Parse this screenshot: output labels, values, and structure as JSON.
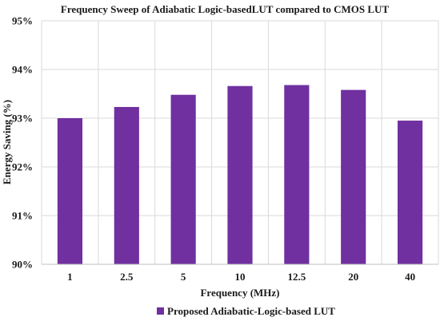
{
  "chart_data": {
    "type": "bar",
    "title": "Frequency Sweep of  Adiabatic Logic-basedLUT compared to CMOS LUT",
    "xlabel": "Frequency (MHz)",
    "ylabel": "Energy Saving (%)",
    "categories": [
      "1",
      "2.5",
      "5",
      "10",
      "12.5",
      "20",
      "40"
    ],
    "series": [
      {
        "name": "Proposed Adiabatic-Logic-based LUT",
        "values": [
          93.0,
          93.23,
          93.48,
          93.66,
          93.68,
          93.58,
          92.95
        ]
      }
    ],
    "ylim": [
      90,
      95
    ],
    "yticks": [
      90,
      91,
      92,
      93,
      94,
      95
    ],
    "ytick_labels": [
      "90%",
      "91%",
      "92%",
      "93%",
      "94%",
      "95%"
    ],
    "grid": true,
    "legend_position": "bottom",
    "colors": {
      "bar": "#7030A0",
      "grid": "#d9d9d9",
      "axis": "#bfbfbf"
    }
  }
}
